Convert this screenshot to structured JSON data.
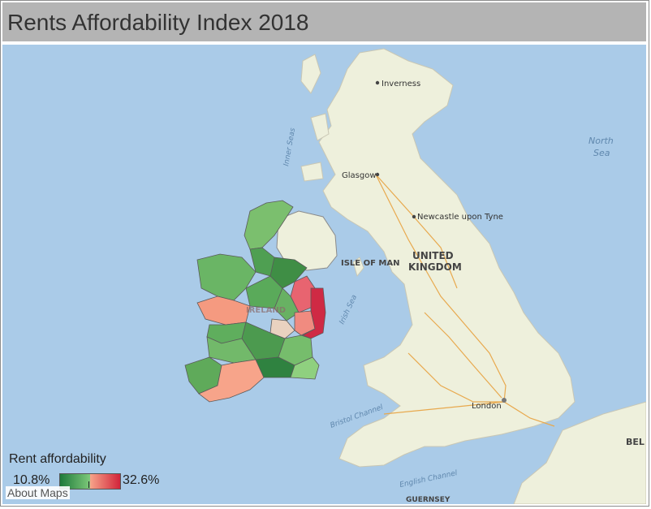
{
  "title": "Rents Affordability Index 2018",
  "map": {
    "cities": [
      {
        "name": "Inverness"
      },
      {
        "name": "Glasgow"
      },
      {
        "name": "Newcastle upon Tyne"
      },
      {
        "name": "London"
      }
    ],
    "seas": {
      "north_sea_1": "North",
      "north_sea_2": "Sea",
      "inner_seas": "Inner Seas",
      "irish_sea": "Irish Sea",
      "bristol_channel": "Bristol Channel",
      "english_channel": "English Channel"
    },
    "places": {
      "isle_of_man": "ISLE OF MAN",
      "uk_1": "UNITED",
      "uk_2": "KINGDOM",
      "ireland": "IRELAND",
      "guernsey": "GUERNSEY",
      "bel": "BEL"
    },
    "colors": {
      "sea": "#aacbe8",
      "land": "#eef0dc",
      "low": "#1e7a3a",
      "mid_green": "#7ec97a",
      "mid_red": "#f7a48a",
      "high": "#d1243a"
    }
  },
  "legend": {
    "title": "Rent affordability",
    "min": "10.8%",
    "max": "32.6%"
  },
  "about_link": "About Maps"
}
